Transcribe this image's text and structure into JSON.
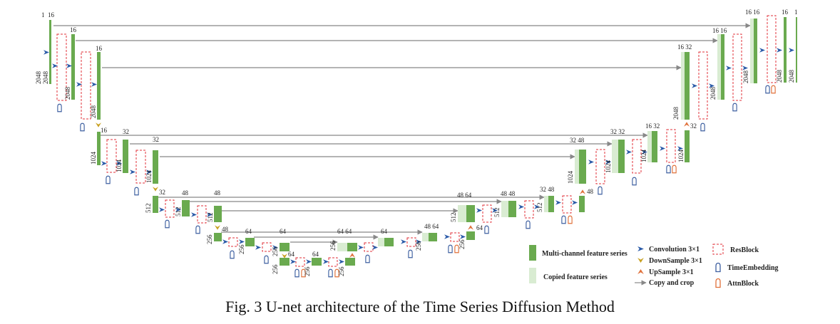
{
  "caption": "Fig. 3 U-net architecture of the Time Series Diffusion Method",
  "colors": {
    "feature": "#6aaa4f",
    "copied": "#d9ecd2",
    "resblock": "#e0313a",
    "conv": "#2a5aa8",
    "downsample": "#c8a020",
    "upsample": "#e0703a",
    "time_embedding": "#3d5fa0",
    "attn": "#e0703a",
    "arrow": "#888888"
  },
  "labels": {
    "enc_l0_in_ch": "1",
    "enc_l0_in_len": "2048",
    "enc_l0_a_ch": "16",
    "enc_l0_a_len": "2048",
    "enc_l0_b_ch": "16",
    "enc_l0_b_len": "2048",
    "enc_l0_c_ch": "16",
    "enc_l0_c_len": "2048",
    "enc_l1_a_ch": "16",
    "enc_l1_a_len": "1024",
    "enc_l1_b_ch": "32",
    "enc_l1_b_len": "1024",
    "enc_l1_c_ch": "32",
    "enc_l1_c_len": "1024",
    "enc_l2_a_ch": "32",
    "enc_l2_a_len": "512",
    "enc_l2_b_ch": "48",
    "enc_l2_b_len": "512",
    "enc_l2_c_ch": "48",
    "enc_l2_c_len": "512",
    "enc_l3_a_ch": "48",
    "enc_l3_a_len": "256",
    "enc_l3_b_ch": "64",
    "enc_l3_b_len": "256",
    "enc_l3_c_ch": "64",
    "enc_l3_c_len": "256",
    "bot_a_ch": "64",
    "bot_a_len": "256",
    "bot_b_ch": "64",
    "bot_b_len": "256",
    "bot_c_len": "256",
    "dec_l3_a_ch": "64 64",
    "dec_l3_b_ch": "64",
    "dec_l3_len": "256",
    "dec_l3_c_ch": "64",
    "dec_l3_d_ch": "48 64",
    "dec_l3_d_len": "256",
    "dec_l3_e_ch": "64",
    "dec_l3_e_len": "256",
    "dec_l2_a_ch": "48 64",
    "dec_l2_a_len": "512",
    "dec_l2_b_ch": "48 48",
    "dec_l2_b_len": "512",
    "dec_l2_c_ch": "32 48",
    "dec_l2_c_len": "512",
    "dec_l2_d_ch": "48",
    "dec_l1_a_ch": "32 48",
    "dec_l1_a_len": "1024",
    "dec_l1_b_ch": "32 32",
    "dec_l1_b_len": "1024",
    "dec_l1_c_ch": "16 32",
    "dec_l1_c_len": "1024",
    "dec_l1_d_ch": "32",
    "dec_l1_d_len": "1024",
    "dec_l0_a_ch": "16 32",
    "dec_l0_a_len": "2048",
    "dec_l0_b_ch": "16 16",
    "dec_l0_b_len": "2048",
    "dec_l0_c_ch": "16 16",
    "dec_l0_c_len": "2048",
    "dec_l0_d_ch": "16",
    "dec_l0_d_len": "2048",
    "dec_l0_out_ch": "1",
    "dec_l0_out_len": "2048"
  },
  "legend": {
    "feature": "Multi-channel feature series",
    "copied": "Copied feature series",
    "conv": "Convolution  3×1",
    "down": "DownSample 3×1",
    "up": "UpSample 3×1",
    "copy": "Copy and crop",
    "res": "ResBlock",
    "time": "TimeEmbedding",
    "attn": "AttnBlock"
  }
}
